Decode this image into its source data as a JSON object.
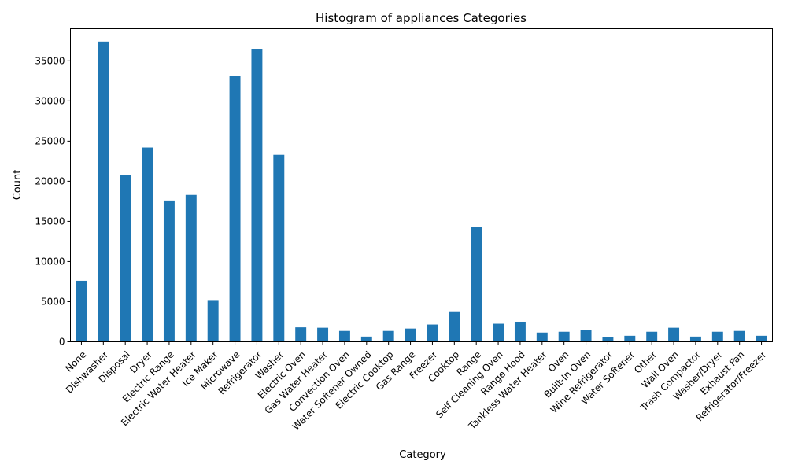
{
  "chart_data": {
    "type": "bar",
    "title": "Histogram of appliances Categories",
    "xlabel": "Category",
    "ylabel": "Count",
    "ylim": [
      0,
      39000
    ],
    "yticks": [
      0,
      5000,
      10000,
      15000,
      20000,
      25000,
      30000,
      35000
    ],
    "grid": false,
    "bar_color": "#1f77b4",
    "categories": [
      "None",
      "Dishwasher",
      "Disposal",
      "Dryer",
      "Electric Range",
      "Electric Water Heater",
      "Ice Maker",
      "Microwave",
      "Refrigerator",
      "Washer",
      "Electric Oven",
      "Gas Water Heater",
      "Convection Oven",
      "Water Softener Owned",
      "Electric Cooktop",
      "Gas Range",
      "Freezer",
      "Cooktop",
      "Range",
      "Self Cleaning Oven",
      "Range Hood",
      "Tankless Water Heater",
      "Oven",
      "Built-In Oven",
      "Wine Refrigerator",
      "Water Softener",
      "Other",
      "Wall Oven",
      "Trash Compactor",
      "Washer/Dryer",
      "Exhaust Fan",
      "Refrigerator/Freezer"
    ],
    "values": [
      7600,
      37400,
      20800,
      24200,
      17600,
      18300,
      5200,
      33100,
      36500,
      23300,
      1800,
      1750,
      1350,
      650,
      1350,
      1650,
      2150,
      3800,
      14300,
      2250,
      2500,
      1150,
      1250,
      1450,
      600,
      750,
      1250,
      1750,
      650,
      1250,
      1350,
      750
    ]
  }
}
